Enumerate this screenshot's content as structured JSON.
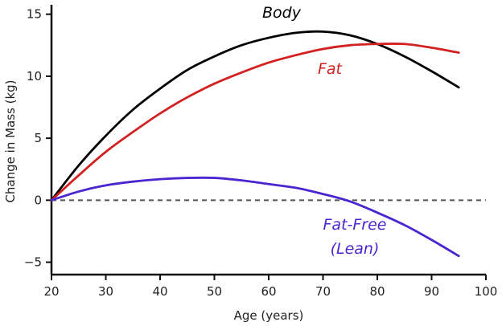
{
  "chart_data": {
    "type": "line",
    "xlabel": "Age (years)",
    "ylabel": "Change in Mass (kg)",
    "xlim": [
      20,
      100
    ],
    "ylim": [
      -6,
      15.5
    ],
    "x_ticks": [
      20,
      30,
      40,
      50,
      60,
      70,
      80,
      90,
      100
    ],
    "y_ticks": [
      -5,
      0,
      5,
      10,
      15
    ],
    "x_tick_labels": [
      "20",
      "30",
      "40",
      "50",
      "60",
      "70",
      "80",
      "90",
      "100"
    ],
    "y_tick_labels": [
      "−5",
      "0",
      "5",
      "10",
      "15"
    ],
    "reference_line": {
      "y": 0,
      "style": "dashed"
    },
    "grid": false,
    "series": [
      {
        "name": "Body",
        "color": "#000000",
        "x": [
          20,
          25,
          30,
          35,
          40,
          45,
          50,
          55,
          60,
          65,
          70,
          75,
          80,
          85,
          90,
          95
        ],
        "values": [
          0.0,
          2.8,
          5.2,
          7.3,
          9.0,
          10.5,
          11.6,
          12.5,
          13.1,
          13.5,
          13.6,
          13.3,
          12.6,
          11.6,
          10.4,
          9.1
        ]
      },
      {
        "name": "Fat",
        "color": "#d32020",
        "x": [
          20,
          25,
          30,
          35,
          40,
          45,
          50,
          55,
          60,
          65,
          70,
          75,
          80,
          85,
          90,
          95
        ],
        "values": [
          0.0,
          2.0,
          3.9,
          5.5,
          7.0,
          8.3,
          9.4,
          10.3,
          11.1,
          11.7,
          12.2,
          12.5,
          12.6,
          12.6,
          12.3,
          11.9
        ]
      },
      {
        "name": "Fat-Free",
        "name_line2": "(Lean)",
        "color": "#4a25d0",
        "x": [
          20,
          25,
          30,
          35,
          40,
          45,
          50,
          55,
          60,
          65,
          70,
          75,
          80,
          85,
          90,
          95
        ],
        "values": [
          0.0,
          0.7,
          1.2,
          1.5,
          1.7,
          1.8,
          1.8,
          1.6,
          1.3,
          1.0,
          0.5,
          -0.1,
          -1.0,
          -2.0,
          -3.2,
          -4.5
        ]
      }
    ]
  }
}
